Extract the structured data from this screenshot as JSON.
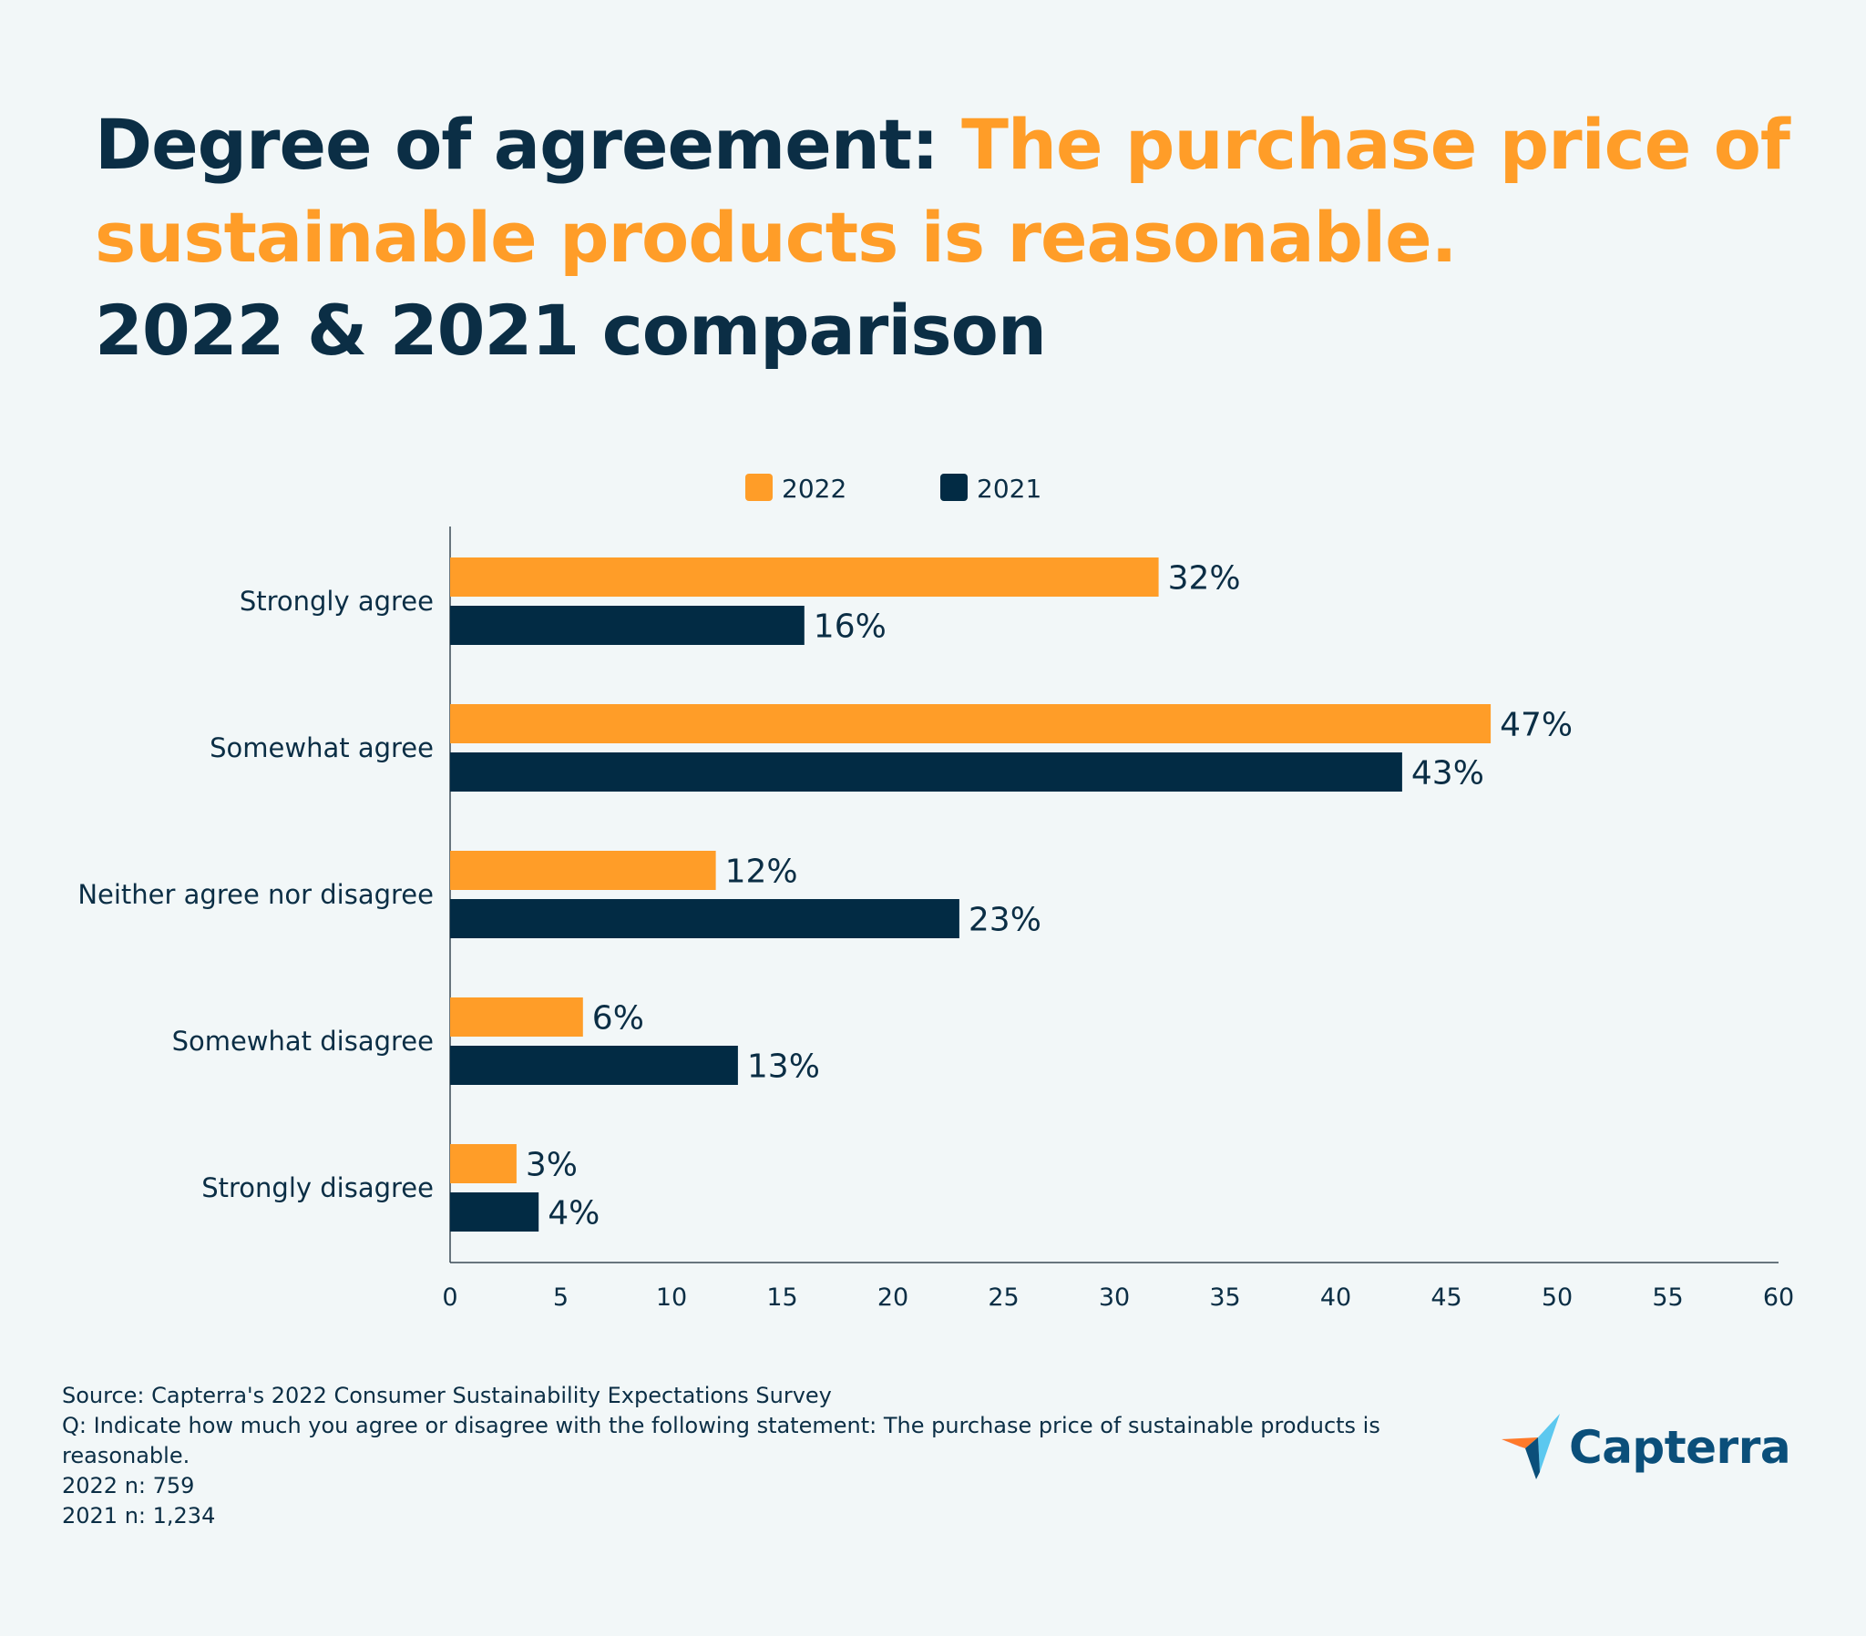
{
  "title": {
    "part1": "Degree of agreement: ",
    "part2": "The purchase price of sustainable products is reasonable.",
    "part3": "2022 & 2021 comparison"
  },
  "colors": {
    "series_2022": "#ff9d28",
    "series_2021": "#022b44",
    "text": "#0b2e45"
  },
  "chart_data": {
    "type": "bar",
    "orientation": "horizontal",
    "title": "Degree of agreement: The purchase price of sustainable products is reasonable. 2022 & 2021 comparison",
    "categories": [
      "Strongly agree",
      "Somewhat agree",
      "Neither agree nor disagree",
      "Somewhat disagree",
      "Strongly disagree"
    ],
    "series": [
      {
        "name": "2022",
        "values": [
          32,
          47,
          12,
          6,
          3
        ],
        "labels": [
          "32%",
          "47%",
          "12%",
          "6%",
          "3%"
        ]
      },
      {
        "name": "2021",
        "values": [
          16,
          43,
          23,
          13,
          4
        ],
        "labels": [
          "16%",
          "43%",
          "23%",
          "13%",
          "4%"
        ]
      }
    ],
    "xlim": [
      0,
      60
    ],
    "xticks": [
      "0",
      "5",
      "10",
      "15",
      "20",
      "25",
      "30",
      "35",
      "40",
      "45",
      "50",
      "55",
      "60"
    ],
    "xlabel": "",
    "ylabel": "",
    "legend_position": "top-center",
    "grid": false
  },
  "source": {
    "line1": "Source: Capterra's 2022 Consumer Sustainability Expectations Survey",
    "line2": "Q: Indicate how much you agree or disagree with the following statement: The purchase price of sustainable products is reasonable.",
    "line3": "2022 n: 759",
    "line4": "2021 n: 1,234"
  },
  "logo": {
    "text": "Capterra",
    "icon": "capterra-arrow-icon"
  }
}
